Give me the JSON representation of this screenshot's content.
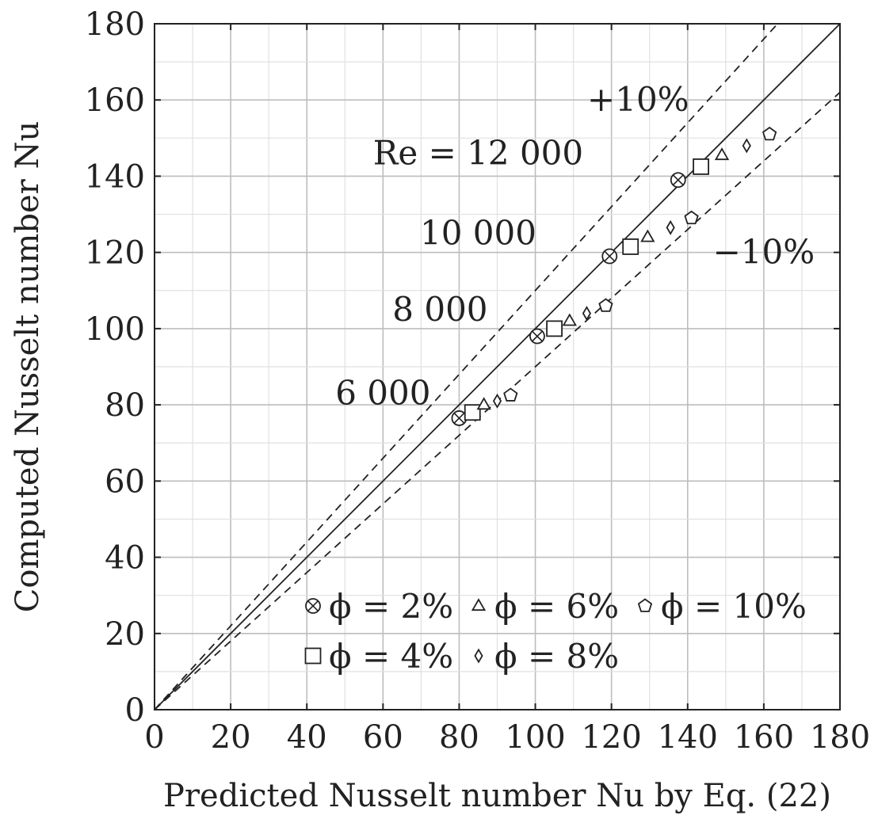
{
  "chart_data": {
    "type": "scatter",
    "title": "",
    "xlabel": "Predicted Nusselt number Nu by Eq. (22)",
    "ylabel": "Computed Nusselt number Nu",
    "xlim": [
      0,
      180
    ],
    "ylim": [
      0,
      180
    ],
    "xticks": [
      "0",
      "20",
      "40",
      "60",
      "80",
      "100",
      "120",
      "140",
      "160",
      "180"
    ],
    "yticks": [
      "0",
      "20",
      "40",
      "60",
      "80",
      "100",
      "120",
      "140",
      "160",
      "180"
    ],
    "grid": "major and minor",
    "legend_position": "bottom-right",
    "reference_lines": [
      {
        "name": "y = x",
        "slope": 1.0,
        "style": "solid"
      },
      {
        "name": "+10%",
        "slope": 1.1,
        "style": "dashed"
      },
      {
        "name": "-10%",
        "slope": 0.9,
        "style": "dashed"
      }
    ],
    "annotations": [
      {
        "text": "+10%",
        "x": 127,
        "y": 160
      },
      {
        "text": "−10%",
        "x": 160,
        "y": 120
      },
      {
        "text": "Re = 12 000",
        "x": 85,
        "y": 146
      },
      {
        "text": "10 000",
        "x": 85,
        "y": 125
      },
      {
        "text": "8 000",
        "x": 75,
        "y": 105
      },
      {
        "text": "6 000",
        "x": 60,
        "y": 83
      }
    ],
    "series": [
      {
        "name": "ϕ = 2%",
        "marker": "circle-x",
        "x": [
          80,
          100.5,
          119.5,
          137.5
        ],
        "y": [
          76.5,
          98,
          119,
          139
        ]
      },
      {
        "name": "ϕ = 4%",
        "marker": "square",
        "x": [
          83.5,
          105,
          125,
          143.5
        ],
        "y": [
          78,
          100,
          121.5,
          142.5
        ]
      },
      {
        "name": "ϕ = 6%",
        "marker": "triangle",
        "x": [
          86.5,
          109,
          129.5,
          149
        ],
        "y": [
          80,
          102,
          124,
          145.5
        ]
      },
      {
        "name": "ϕ = 8%",
        "marker": "diamond",
        "x": [
          90,
          113.5,
          135.5,
          155.5
        ],
        "y": [
          81,
          104,
          126.5,
          148
        ]
      },
      {
        "name": "ϕ = 10%",
        "marker": "pentagon",
        "x": [
          93.5,
          118.5,
          141,
          161.5
        ],
        "y": [
          82.5,
          106,
          129,
          151
        ]
      }
    ]
  }
}
